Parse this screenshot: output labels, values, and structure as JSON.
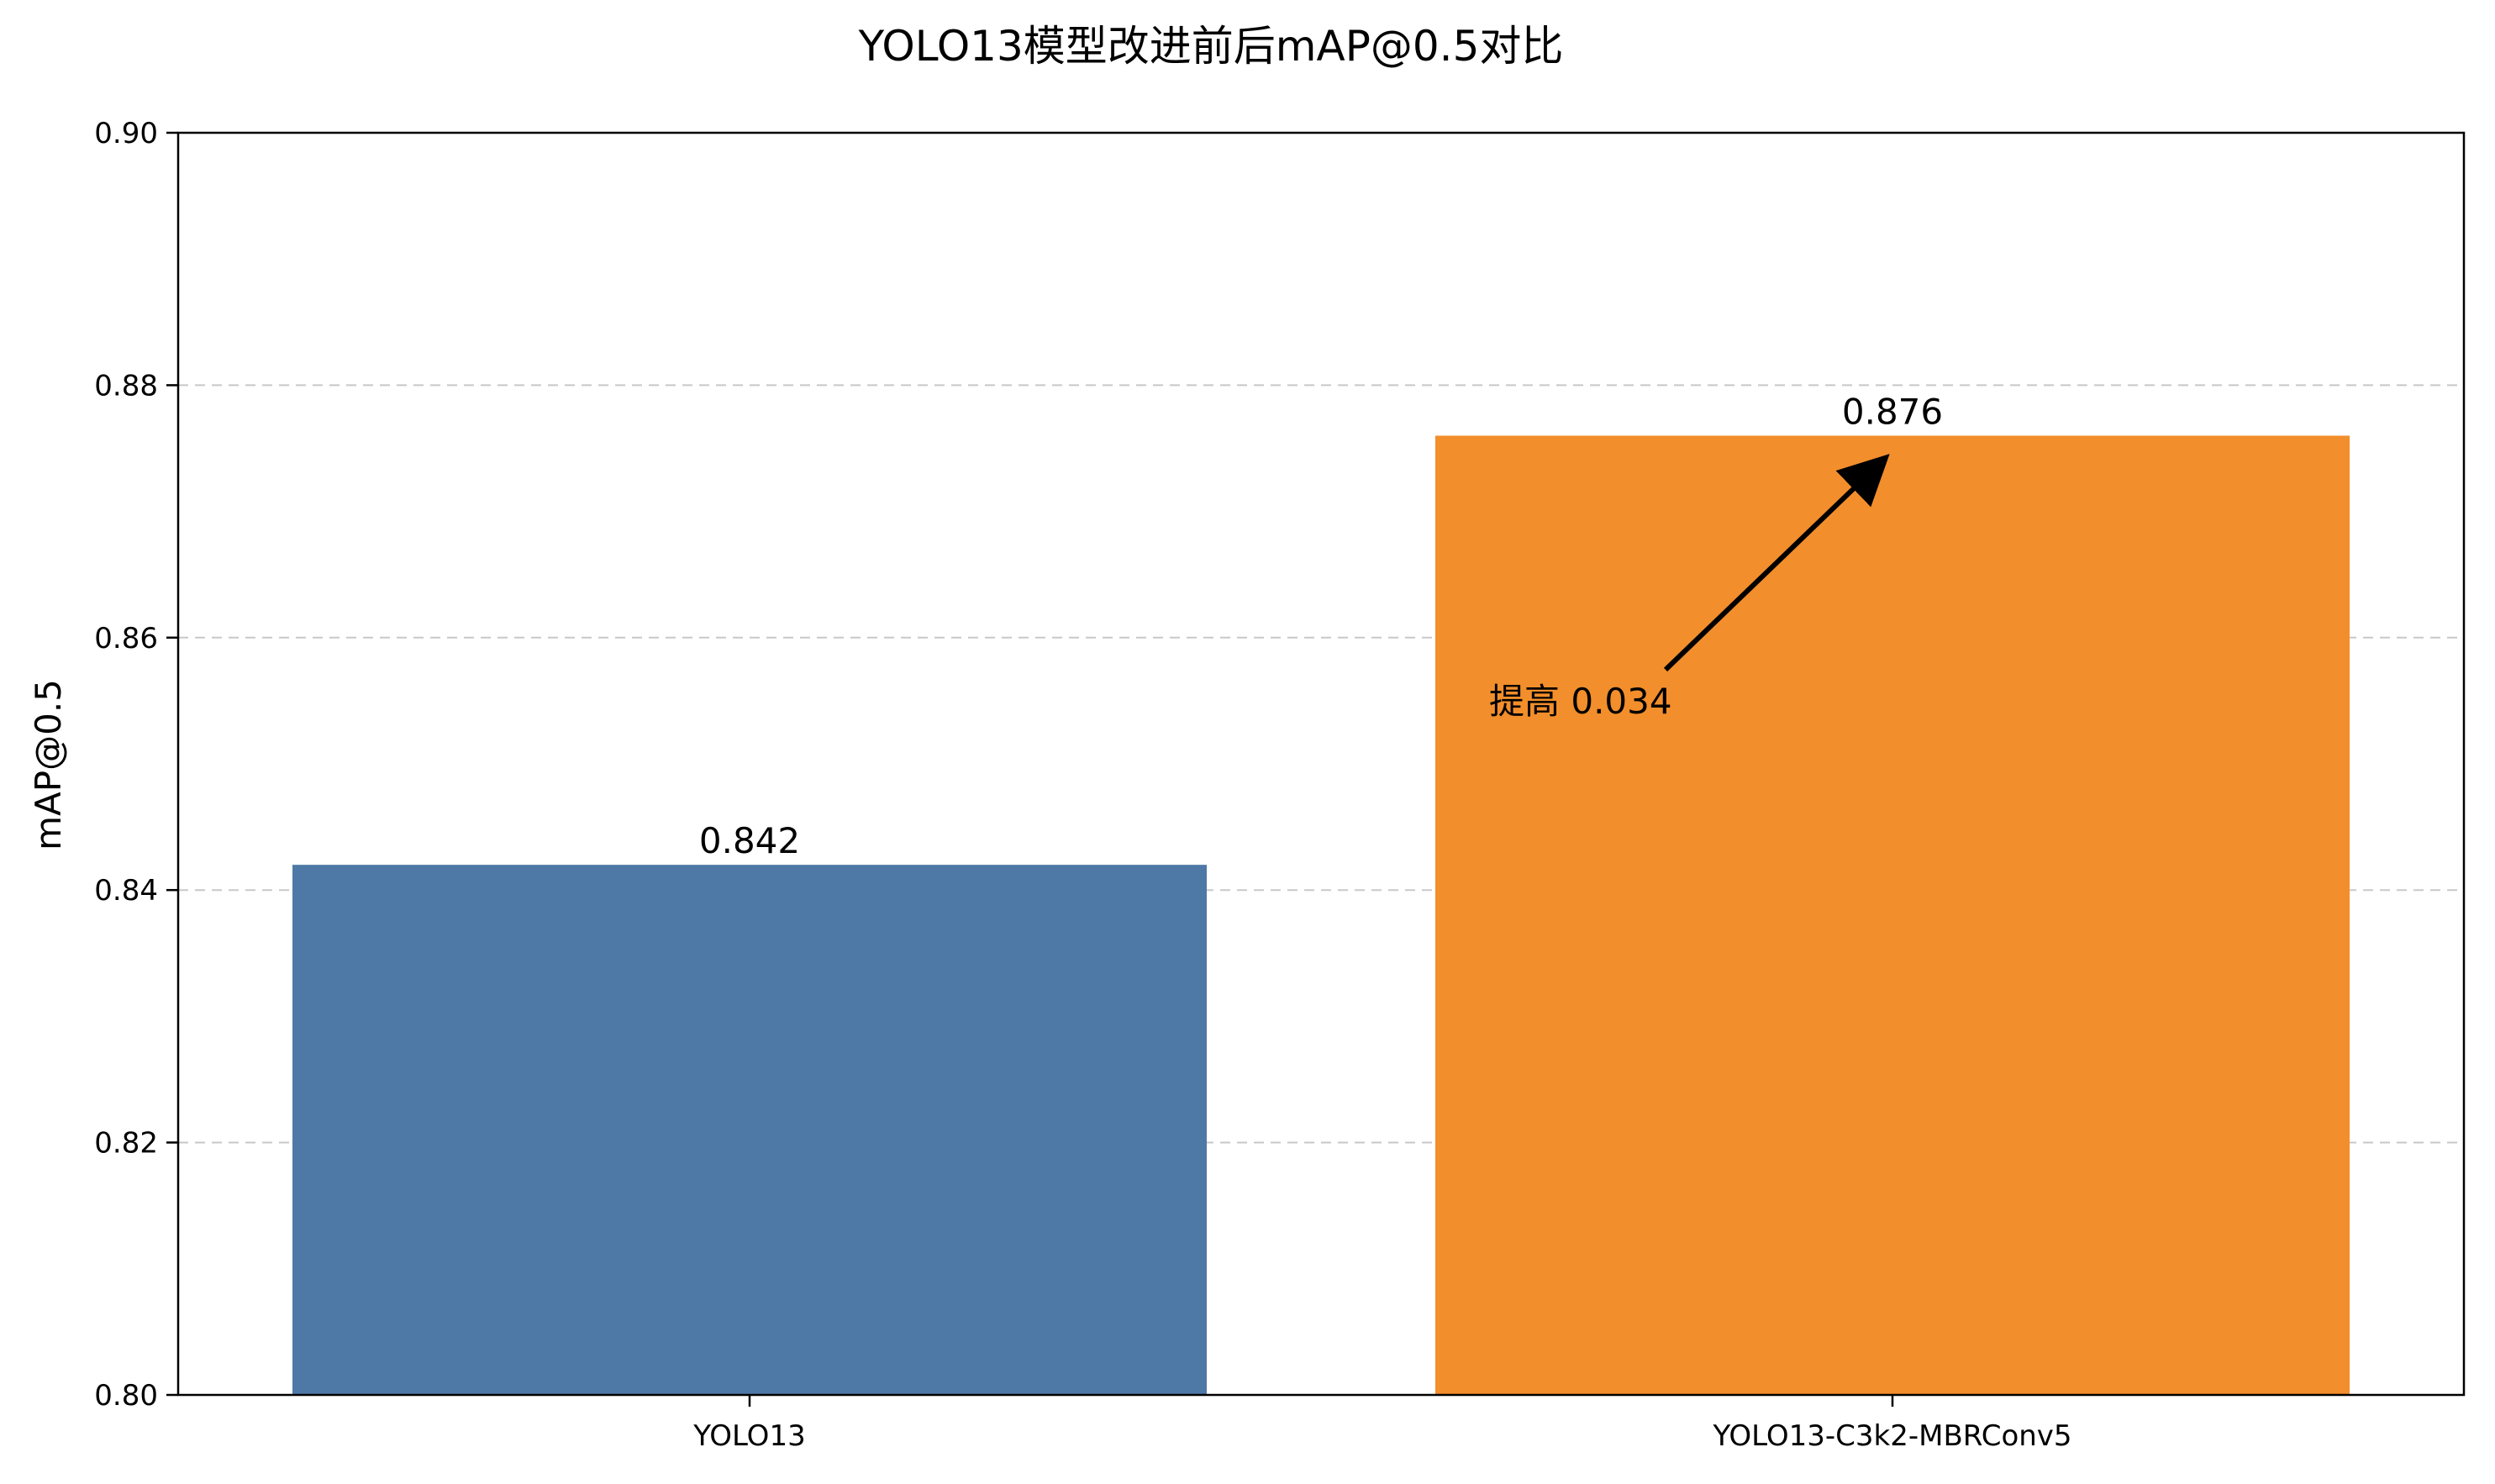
{
  "chart_data": {
    "type": "bar",
    "title": "YOLO13模型改进前后mAP@0.5对比",
    "xlabel": "",
    "ylabel": "mAP@0.5",
    "categories": [
      "YOLO13",
      "YOLO13-C3k2-MBRConv5"
    ],
    "values": [
      0.842,
      0.876
    ],
    "value_labels": [
      "0.842",
      "0.876"
    ],
    "colors": [
      "#4e79a7",
      "#f28e2b"
    ],
    "ylim": [
      0.8,
      0.9
    ],
    "yticks": [
      0.8,
      0.82,
      0.84,
      0.86,
      0.88,
      0.9
    ],
    "ytick_labels": [
      "0.80",
      "0.82",
      "0.84",
      "0.86",
      "0.88",
      "0.90"
    ],
    "grid": "y-dashed",
    "annotation": {
      "text": "提高 0.034",
      "target_category": "YOLO13-C3k2-MBRConv5",
      "target_value": 0.876,
      "text_value": 0.854,
      "arrow": true
    }
  }
}
